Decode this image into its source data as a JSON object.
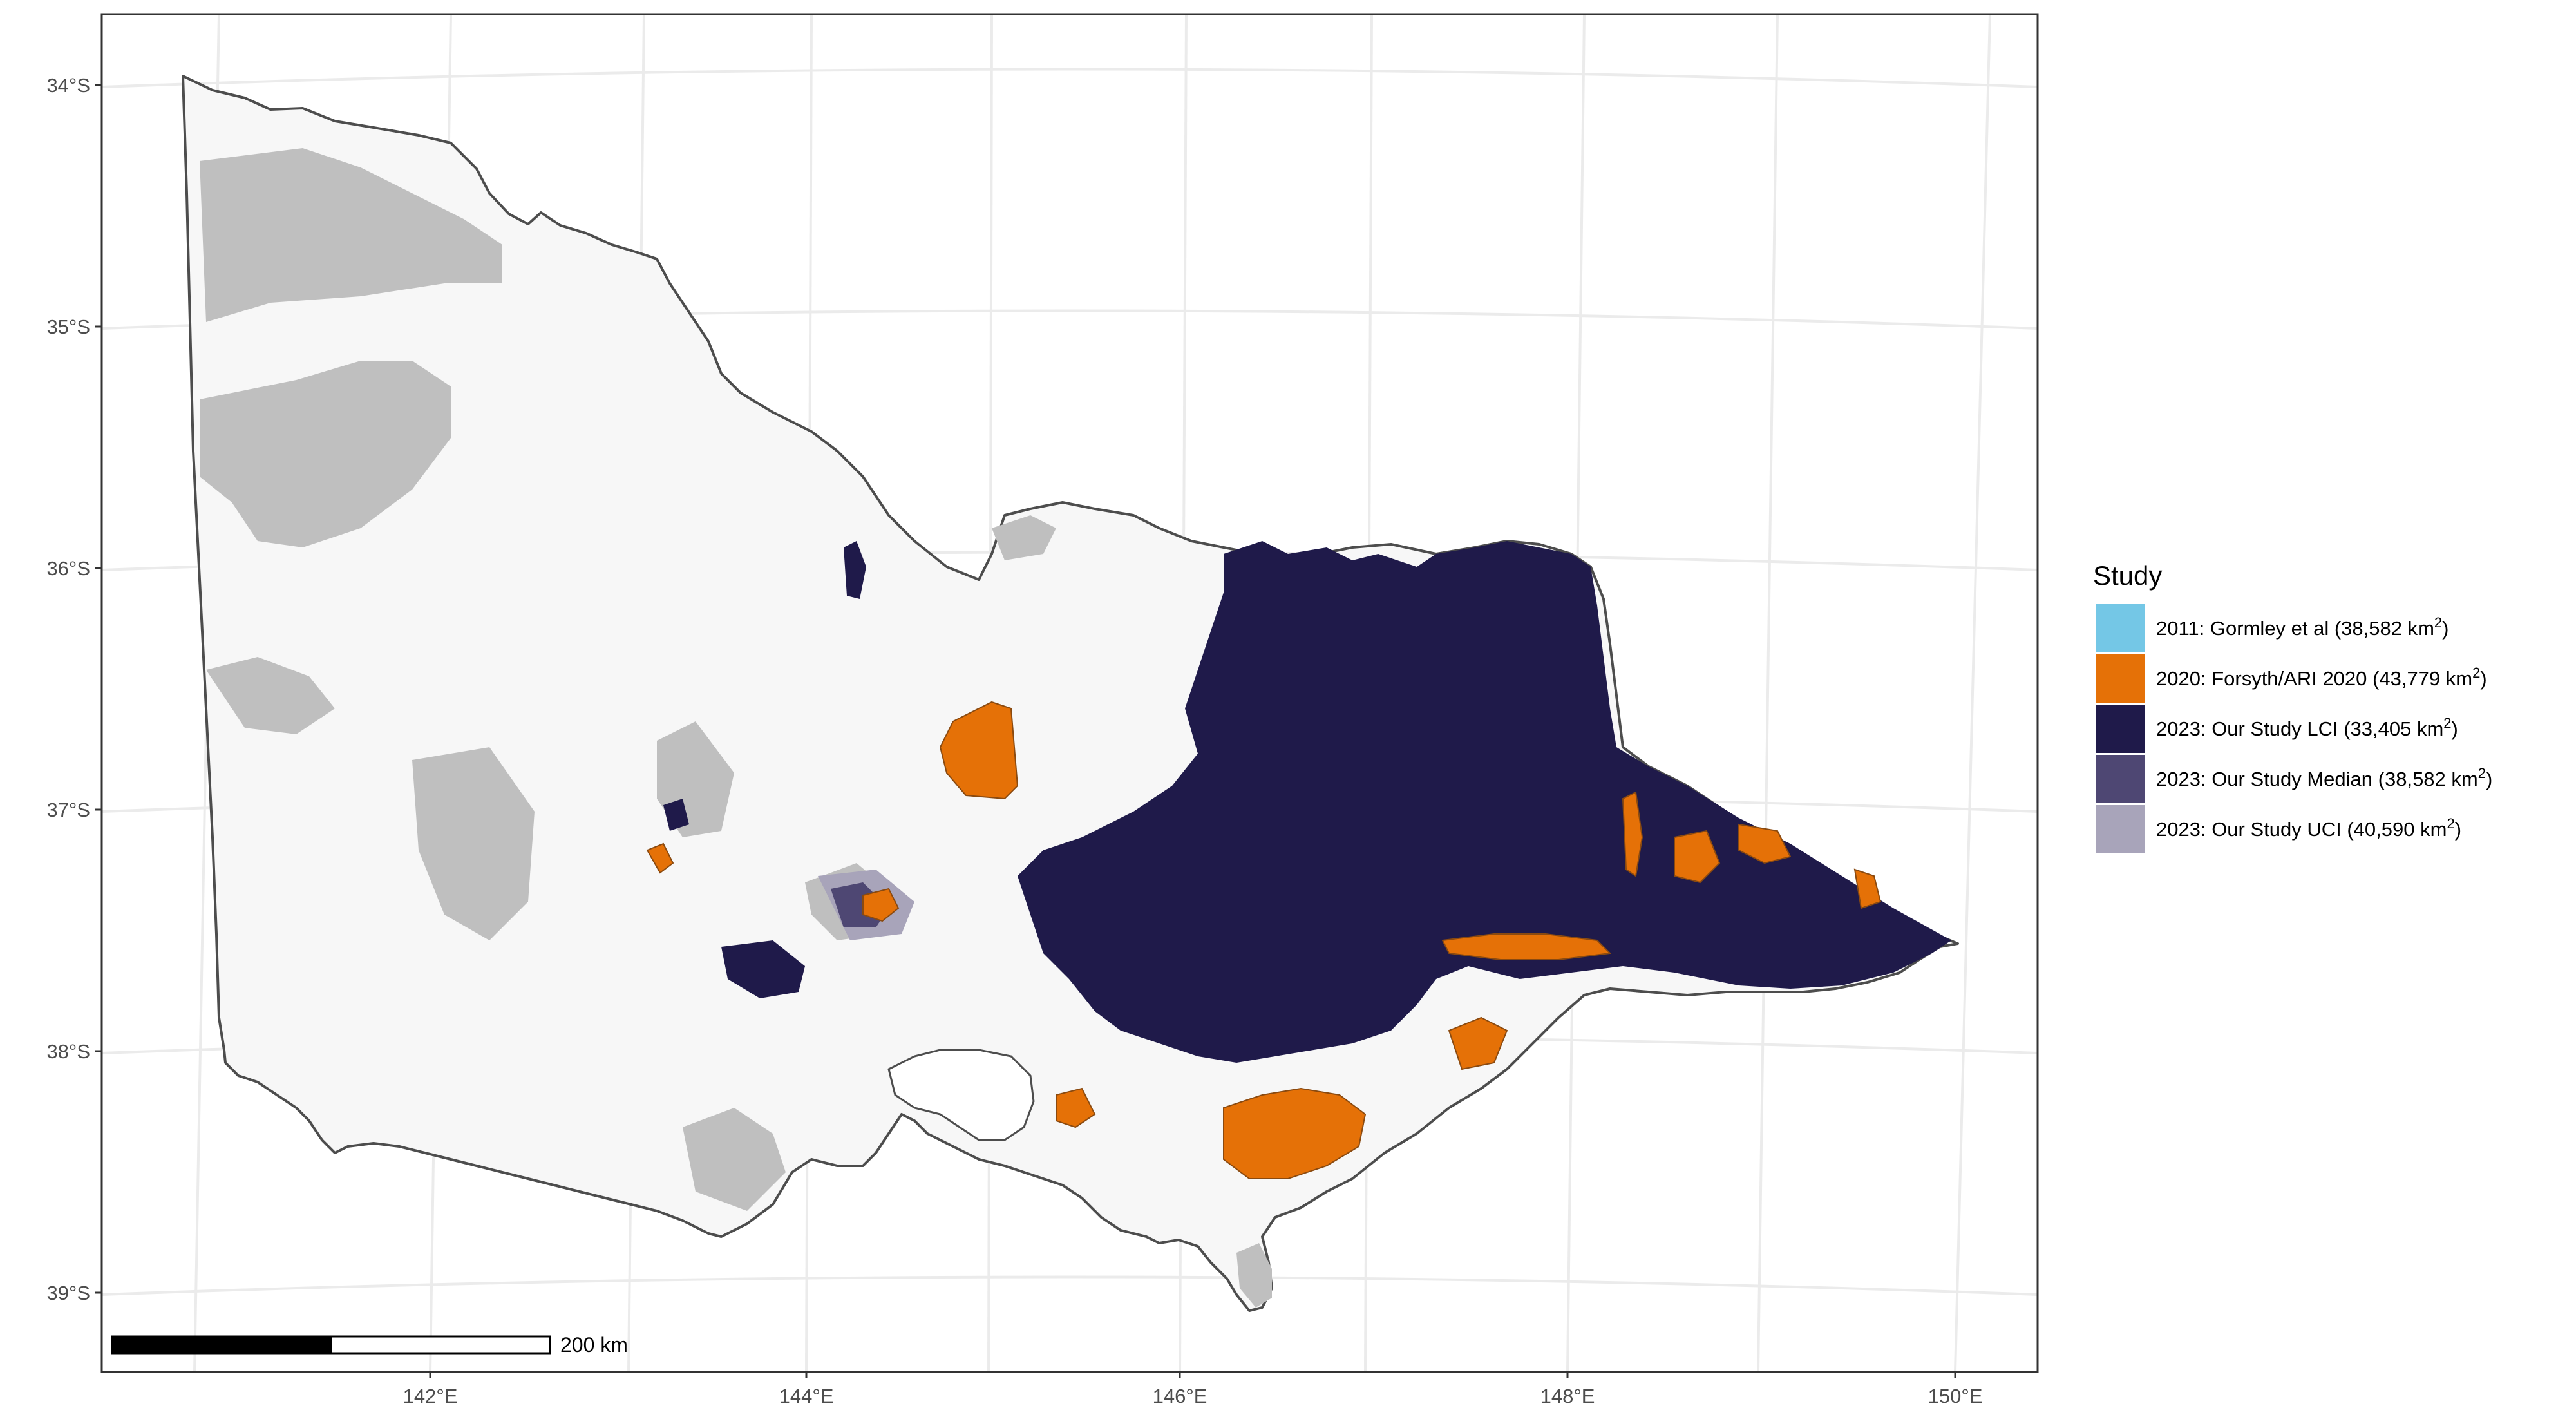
{
  "axes": {
    "y_ticks": [
      "34°S",
      "35°S",
      "36°S",
      "37°S",
      "38°S",
      "39°S"
    ],
    "x_ticks": [
      "142°E",
      "144°E",
      "146°E",
      "148°E",
      "150°E"
    ]
  },
  "scale_bar": {
    "label": "200 km",
    "distance_km": 200
  },
  "legend": {
    "title": "Study",
    "items": [
      {
        "label": "2011: Gormley et al (38,582 km",
        "sup": "2",
        "suffix": ")",
        "color": "#74c7e6"
      },
      {
        "label": "2020: Forsyth/ARI 2020 (43,779 km",
        "sup": "2",
        "suffix": ")",
        "color": "#e57107"
      },
      {
        "label": "2023: Our Study LCI (33,405 km",
        "sup": "2",
        "suffix": ")",
        "color": "#1f1a4a"
      },
      {
        "label": "2023: Our Study Median (38,582 km",
        "sup": "2",
        "suffix": ")",
        "color": "#4e4773"
      },
      {
        "label": "2023: Our Study UCI (40,590 km",
        "sup": "2",
        "suffix": ")",
        "color": "#a8a4ba"
      }
    ]
  },
  "colors": {
    "land": "#f7f7f7",
    "nonhabitat": "#bfbfbf",
    "outline": "#4d4d4d",
    "grid": "#ebebeb",
    "panel_border": "#333333"
  }
}
